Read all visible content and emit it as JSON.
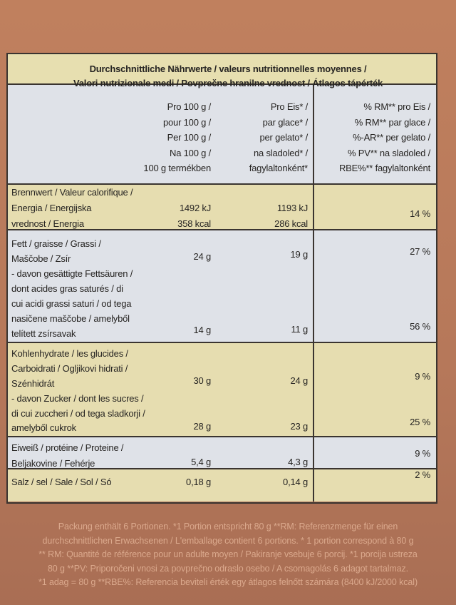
{
  "title": [
    "Durchschnittliche Nährwerte / valeurs nutritionnelles moyennes /",
    "Valori nutrizionale medi / Povprečne hranilne vrednost / Átlagos tápérték"
  ],
  "columns": {
    "per_100g": [
      "Pro 100 g /",
      "pour 100 g /",
      "Per 100 g /",
      "Na 100 g /",
      "100 g termékben"
    ],
    "per_portion": [
      "Pro Eis* /",
      "par glace* /",
      "per gelato* /",
      "na sladoled* /",
      "fagylaltonként*"
    ],
    "ri": [
      "% RM** pro Eis /",
      "% RM** par glace /",
      "%-AR** per gelato /",
      "% PV** na sladoled /",
      "RBE%** fagylaltonként"
    ]
  },
  "rows": [
    {
      "label": [
        "Brennwert / Valeur calorifique /",
        "Energia / Energijska",
        "vrednost / Energia"
      ],
      "per_100g": [
        "1492 kJ",
        "358 kcal"
      ],
      "per_portion": [
        "1193 kJ",
        "286 kcal"
      ],
      "ri": [
        "14 %"
      ]
    },
    {
      "label": [
        "Fett / graisse / Grassi /",
        "Maščobe / Zsír",
        "- davon gesättigte Fettsäuren /",
        "dont acides gras saturés / di",
        "cui acidi grassi saturi / od tega",
        "nasičene maščobe / amelyből",
        "telített zsírsavak"
      ],
      "per_100g": [
        "24 g",
        "14 g"
      ],
      "per_portion": [
        "19 g",
        "11 g"
      ],
      "ri": [
        "27 %",
        "56 %"
      ]
    },
    {
      "label": [
        "Kohlenhydrate / les glucides /",
        "Carboidrati / Ogljikovi hidrati /",
        "Szénhidrát",
        "- davon Zucker / dont les sucres /",
        "di cui zuccheri / od tega sladkorji /",
        "amelyből cukrok"
      ],
      "per_100g": [
        "30 g",
        "28 g"
      ],
      "per_portion": [
        "24 g",
        "23 g"
      ],
      "ri": [
        "9 %",
        "25 %"
      ]
    },
    {
      "label": [
        "Eiweiß / protéine / Proteine /",
        "Beljakovine / Fehérje"
      ],
      "per_100g": [
        "5,4 g"
      ],
      "per_portion": [
        "4,3 g"
      ],
      "ri": [
        "9 %"
      ]
    },
    {
      "label": [
        "Salz / sel / Sale / Sol / Só"
      ],
      "per_100g": [
        "0,18 g"
      ],
      "per_portion": [
        "0,14 g"
      ],
      "ri": [
        "2 %"
      ]
    }
  ],
  "footer": [
    "Packung enthält 6 Portionen. *1 Portion entspricht 80 g **RM: Referenzmenge für einen",
    "durchschnittlichen Erwachsenen / L'emballage contient 6 portions. * 1 portion correspond à 80 g",
    "** RM: Quantité de référence pour un adulte moyen / Pakiranje vsebuje 6 porcij. *1 porcija ustreza",
    "80 g **PV: Priporočeni vnosi za povprečno odraslo osebo / A csomagolás 6 adagot tartalmaz.",
    "*1 adag = 80 g **RBE%: Referencia beviteli érték egy átlagos felnőtt számára (8400 kJ/2000 kcal)"
  ]
}
